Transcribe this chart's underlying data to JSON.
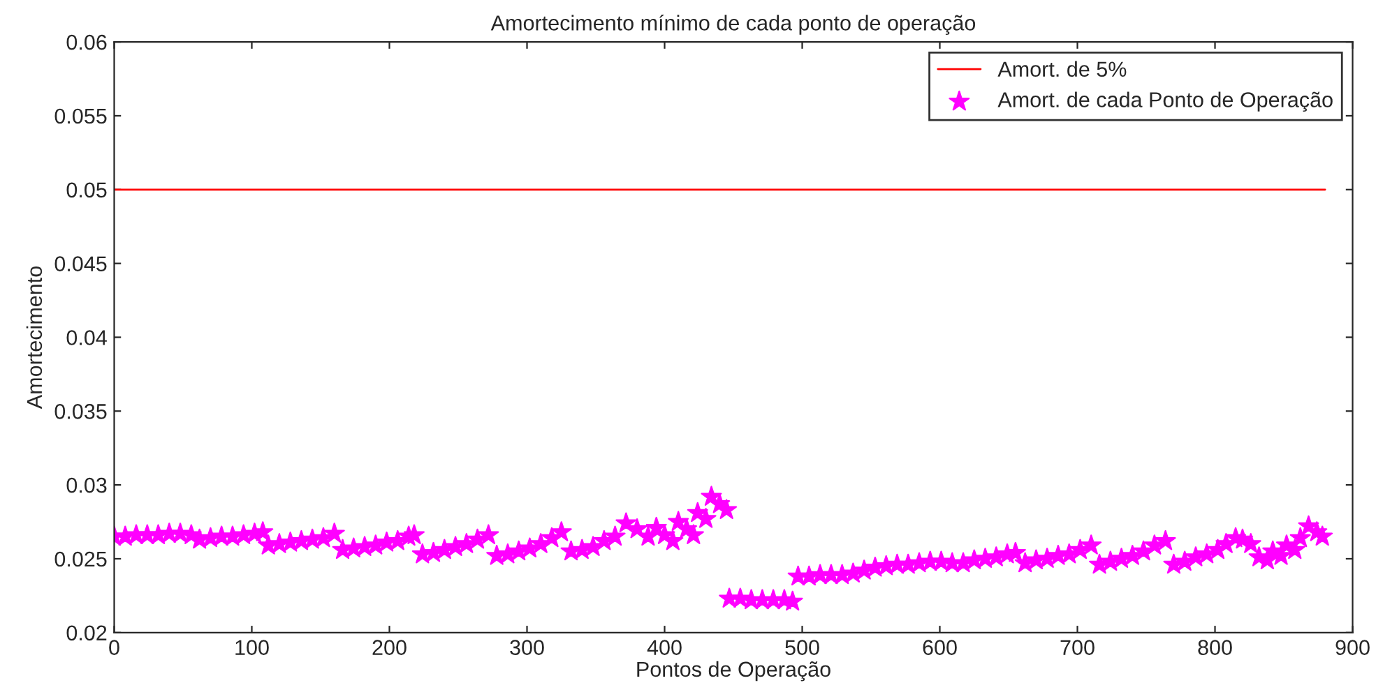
{
  "chart_data": {
    "type": "scatter",
    "title": "Amortecimento mínimo de cada ponto de operação",
    "xlabel": "Pontos de Operação",
    "ylabel": "Amortecimento",
    "xlim": [
      0,
      900
    ],
    "xticks": [
      0,
      100,
      200,
      300,
      400,
      500,
      600,
      700,
      800,
      900
    ],
    "ylim": [
      0.02,
      0.06
    ],
    "yticks": [
      0.02,
      0.025,
      0.03,
      0.035,
      0.04,
      0.045,
      0.05,
      0.055,
      0.06
    ],
    "grid": false,
    "legend": "top right",
    "series": [
      {
        "name": "Amort. de 5%",
        "type": "line",
        "color": "#ff0000",
        "line_style": "solid",
        "marker": "none",
        "x": [
          0,
          880
        ],
        "values": [
          0.05,
          0.05
        ]
      },
      {
        "name": "Amort. de cada Ponto de Operação",
        "marker": "star",
        "color": "#ff00ff",
        "x": [
          0,
          8,
          16,
          24,
          32,
          40,
          48,
          56,
          62,
          70,
          78,
          86,
          94,
          102,
          108,
          112,
          120,
          128,
          136,
          144,
          152,
          160,
          166,
          174,
          182,
          190,
          198,
          206,
          214,
          218,
          224,
          232,
          240,
          248,
          256,
          264,
          272,
          278,
          286,
          294,
          302,
          310,
          318,
          325,
          332,
          340,
          348,
          356,
          364,
          372,
          380,
          388,
          394,
          400,
          406,
          410,
          416,
          421,
          424,
          430,
          434,
          440,
          445,
          447,
          455,
          463,
          471,
          479,
          487,
          493,
          497,
          505,
          513,
          521,
          529,
          537,
          545,
          553,
          561,
          569,
          577,
          585,
          593,
          601,
          609,
          617,
          625,
          633,
          641,
          649,
          655,
          662,
          670,
          678,
          686,
          694,
          702,
          710,
          716,
          724,
          732,
          740,
          748,
          756,
          764,
          770,
          778,
          786,
          794,
          802,
          808,
          815,
          820,
          826,
          832,
          838,
          842,
          848,
          852,
          858,
          862,
          868,
          874,
          878
        ],
        "values": [
          0.0265,
          0.0265,
          0.0266,
          0.0266,
          0.0266,
          0.0267,
          0.0267,
          0.0266,
          0.0263,
          0.0264,
          0.0265,
          0.0265,
          0.0266,
          0.0267,
          0.0268,
          0.0259,
          0.026,
          0.0261,
          0.0262,
          0.0263,
          0.0264,
          0.0267,
          0.0256,
          0.0257,
          0.0258,
          0.0259,
          0.0261,
          0.0262,
          0.0265,
          0.0266,
          0.0253,
          0.0254,
          0.0256,
          0.0258,
          0.026,
          0.0263,
          0.0266,
          0.0252,
          0.0253,
          0.0255,
          0.0257,
          0.026,
          0.0264,
          0.0268,
          0.0255,
          0.0256,
          0.0258,
          0.0262,
          0.0265,
          0.0274,
          0.027,
          0.0265,
          0.0271,
          0.0266,
          0.0262,
          0.0275,
          0.027,
          0.0266,
          0.0281,
          0.0277,
          0.0292,
          0.0287,
          0.0283,
          0.0223,
          0.0223,
          0.0222,
          0.0222,
          0.0222,
          0.0222,
          0.0221,
          0.0238,
          0.0238,
          0.0239,
          0.0239,
          0.0239,
          0.024,
          0.0242,
          0.0244,
          0.0245,
          0.0246,
          0.0246,
          0.0247,
          0.0248,
          0.0248,
          0.0247,
          0.0247,
          0.0249,
          0.025,
          0.0251,
          0.0253,
          0.0254,
          0.0247,
          0.0249,
          0.025,
          0.0252,
          0.0253,
          0.0256,
          0.0259,
          0.0246,
          0.0248,
          0.025,
          0.0252,
          0.0255,
          0.0259,
          0.0262,
          0.0246,
          0.0248,
          0.0251,
          0.0253,
          0.0256,
          0.026,
          0.0264,
          0.0263,
          0.026,
          0.0251,
          0.0249,
          0.0255,
          0.0252,
          0.0259,
          0.0256,
          0.0264,
          0.0272,
          0.0268,
          0.0265
        ]
      }
    ]
  }
}
